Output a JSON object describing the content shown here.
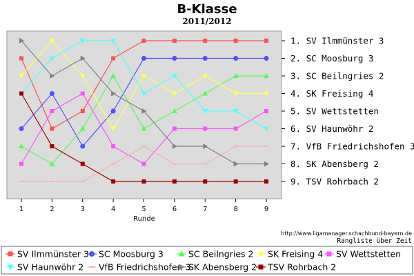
{
  "chart_data": {
    "type": "line",
    "title": "B-Klasse",
    "subtitle": "2011/2012",
    "xlabel": "Runde",
    "x": [
      1,
      2,
      3,
      4,
      5,
      6,
      7,
      8,
      9
    ],
    "ylim": [
      0.5,
      9.5
    ],
    "y_inverted": true,
    "grid": false,
    "ranking": [
      "1. SV Ilmmünster 3",
      "2. SC Moosburg 3",
      "3. SC Beilngries 2",
      "4. SK Freising 4",
      "5. SV Wettstetten",
      "6. SV Haunwöhr 2",
      "7. VfB Friedrichshofen 3",
      "8. SK Abensberg 2",
      "9. TSV Rohrbach 2"
    ],
    "series": [
      {
        "name": "SV Ilmmünster 3",
        "color": "#ff5050",
        "marker": "square",
        "values": [
          2,
          6,
          5,
          2,
          1,
          1,
          1,
          1,
          1
        ]
      },
      {
        "name": "SC Moosburg 3",
        "color": "#5050ff",
        "marker": "circle",
        "values": [
          6,
          4,
          7,
          5,
          2,
          2,
          2,
          2,
          2
        ]
      },
      {
        "name": "SC Beilngries 2",
        "color": "#50ff50",
        "marker": "triangle-up",
        "values": [
          7,
          8,
          6,
          3,
          6,
          5,
          4,
          3,
          3
        ]
      },
      {
        "name": "SK Freising 4",
        "color": "#ffff50",
        "marker": "triangle-down",
        "values": [
          3,
          1,
          3,
          6,
          3,
          4,
          3,
          4,
          4
        ]
      },
      {
        "name": "SV Wettstetten",
        "color": "#ff50ff",
        "marker": "square",
        "values": [
          8,
          5,
          4,
          7,
          8,
          6,
          6,
          6,
          5
        ]
      },
      {
        "name": "SV Haunwöhr 2",
        "color": "#50ffff",
        "marker": "triangle-down",
        "values": [
          4,
          2,
          1,
          1,
          4,
          3,
          5,
          5,
          6
        ]
      },
      {
        "name": "VfB Friedrichshofen 3",
        "color": "#ffb0b0",
        "marker": "line",
        "values": [
          9,
          9,
          9,
          8,
          7,
          8,
          8,
          7,
          7
        ]
      },
      {
        "name": "SK Abensberg 2",
        "color": "#808080",
        "marker": "triangle-right",
        "values": [
          1,
          3,
          2,
          4,
          5,
          7,
          7,
          8,
          8
        ]
      },
      {
        "name": "TSV Rohrbach 2",
        "color": "#a00000",
        "marker": "square",
        "values": [
          4,
          7,
          8,
          9,
          9,
          9,
          9,
          9,
          9
        ]
      }
    ]
  },
  "footer": {
    "url": "http://www.ligamanager.schachbund-bayern.de",
    "note": "Rangliste über Zeit"
  }
}
